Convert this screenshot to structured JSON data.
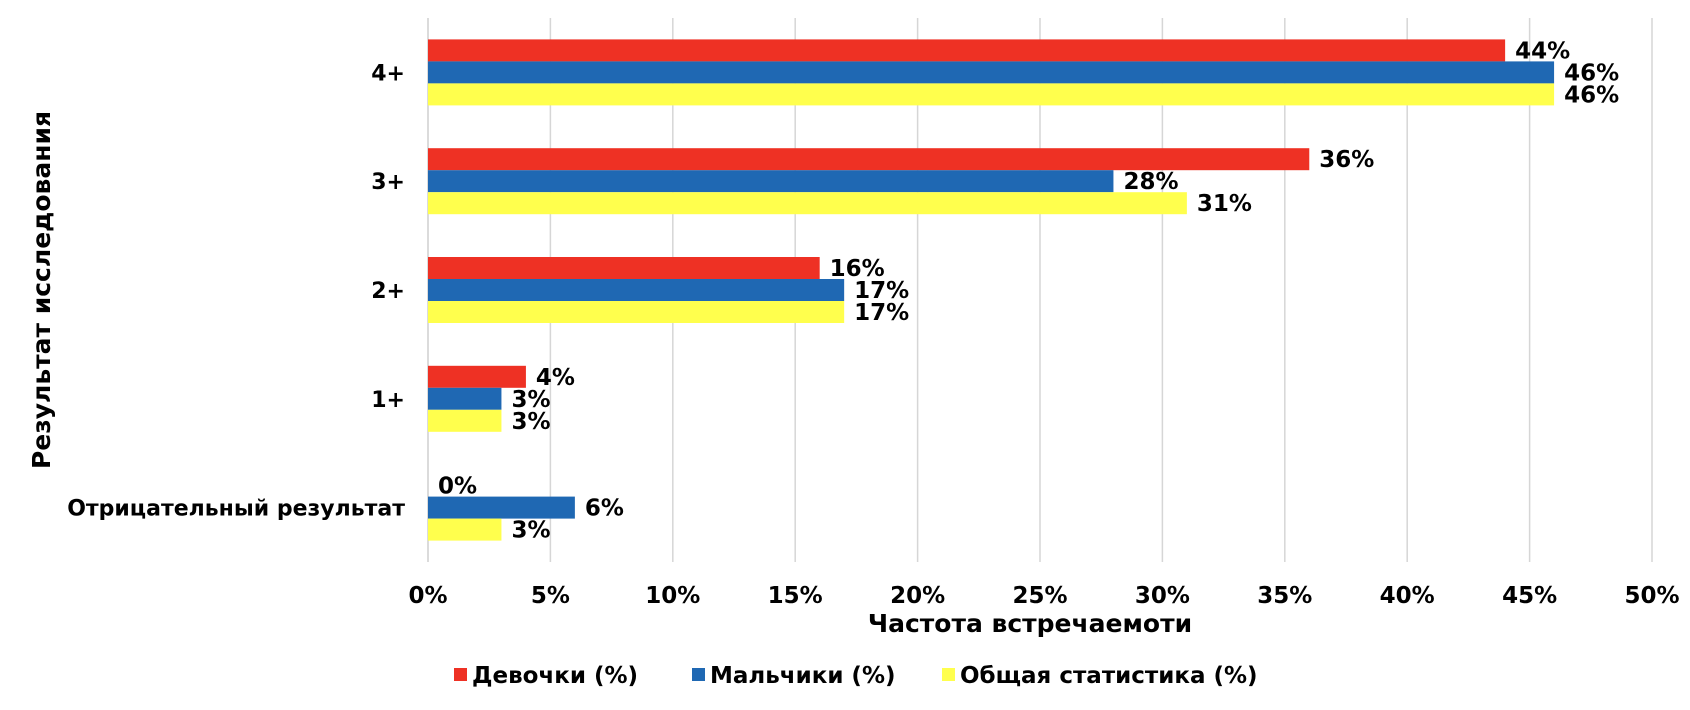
{
  "chart_data": {
    "type": "bar",
    "orientation": "horizontal",
    "title": "",
    "xlabel": "Частота встречаемоти",
    "ylabel": "Результат исследования",
    "xlim": [
      0,
      50
    ],
    "x_ticks": [
      "0%",
      "5%",
      "10%",
      "15%",
      "20%",
      "25%",
      "30%",
      "35%",
      "40%",
      "45%",
      "50%"
    ],
    "grid": "vertical",
    "legend_position": "bottom",
    "categories": [
      "4+",
      "3+",
      "2+",
      "1+",
      "Отрицательный результат"
    ],
    "series": [
      {
        "name": "Девочки (%)",
        "color": "#EE3124",
        "values": [
          44,
          36,
          16,
          4,
          0
        ],
        "labels": [
          "44%",
          "36%",
          "16%",
          "4%",
          "0%"
        ]
      },
      {
        "name": "Мальчики (%)",
        "color": "#1F68B3",
        "values": [
          46,
          28,
          17,
          3,
          6
        ],
        "labels": [
          "46%",
          "28%",
          "17%",
          "3%",
          "6%"
        ]
      },
      {
        "name": "Общая статистика (%)",
        "color": "#FFFF4D",
        "values": [
          46,
          31,
          17,
          3,
          3
        ],
        "labels": [
          "46%",
          "31%",
          "17%",
          "3%",
          "3%"
        ]
      }
    ]
  }
}
